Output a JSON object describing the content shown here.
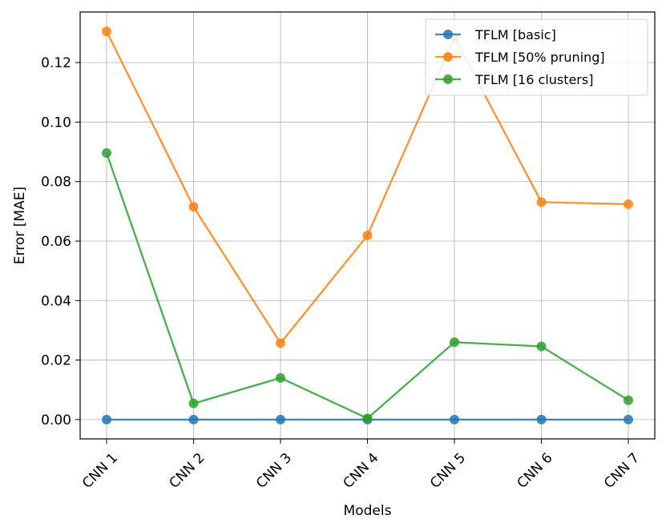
{
  "chart_data": {
    "type": "line",
    "title": "",
    "xlabel": "Models",
    "ylabel": "Error [MAE]",
    "categories": [
      "CNN 1",
      "CNN 2",
      "CNN 3",
      "CNN 4",
      "CNN 5",
      "CNN 6",
      "CNN 7"
    ],
    "y_ticks": [
      "0.00",
      "0.02",
      "0.04",
      "0.06",
      "0.08",
      "0.10",
      "0.12"
    ],
    "ylim": [
      -0.0065,
      0.137
    ],
    "grid": true,
    "legend_position": "top-right",
    "series": [
      {
        "name": "TFLM [basic]",
        "color": "#1f77b4",
        "values": [
          0.0,
          0.0,
          0.0,
          0.0,
          0.0,
          0.0,
          0.0
        ]
      },
      {
        "name": "TFLM [50% pruning]",
        "color": "#ff7f0e",
        "values": [
          0.1305,
          0.0715,
          0.0257,
          0.0619,
          0.1285,
          0.0731,
          0.0724
        ]
      },
      {
        "name": "TFLM [16 clusters]",
        "color": "#2ca02c",
        "values": [
          0.0896,
          0.0054,
          0.014,
          0.0004,
          0.026,
          0.0246,
          0.0065
        ]
      }
    ]
  }
}
